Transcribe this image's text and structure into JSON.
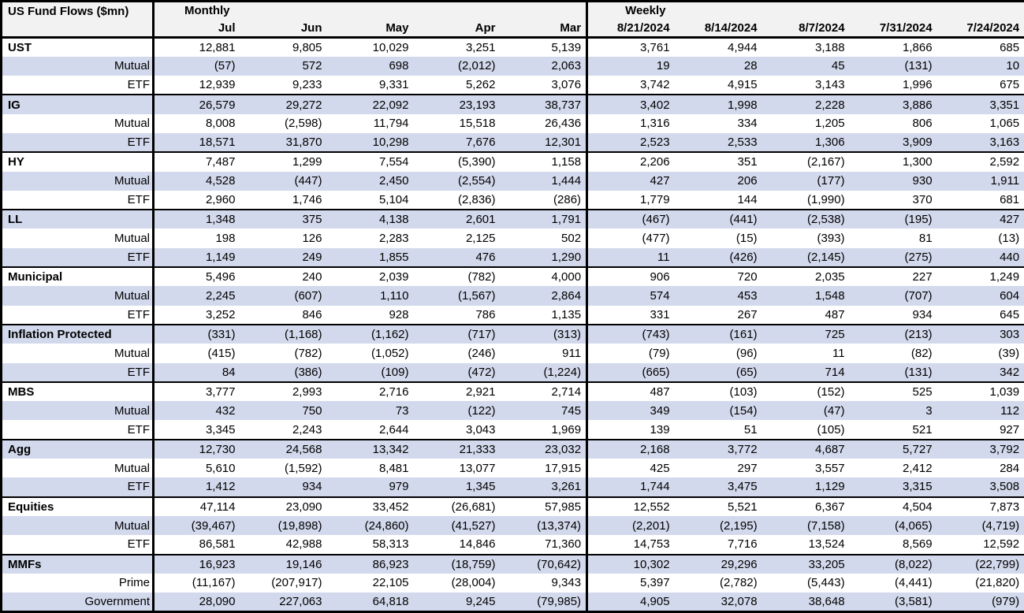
{
  "title": "US Fund Flows ($mn)",
  "colors": {
    "stripe_row": "#d2d9ec",
    "header_bg": "#f2f2f2",
    "border": "#000000",
    "text": "#000000",
    "row_bg": "#ffffff"
  },
  "chart_data": {
    "type": "table",
    "title": "US Fund Flows ($mn)",
    "negative_format": "parentheses",
    "column_groups": [
      {
        "label": "Monthly",
        "columns": [
          "Jul",
          "Jun",
          "May",
          "Apr",
          "Mar"
        ]
      },
      {
        "label": "Weekly",
        "columns": [
          "8/21/2024",
          "8/14/2024",
          "8/7/2024",
          "7/31/2024",
          "7/24/2024"
        ]
      }
    ],
    "rows": [
      {
        "label": "UST",
        "type": "section",
        "monthly": [
          12881,
          9805,
          10029,
          3251,
          5139
        ],
        "weekly": [
          3761,
          4944,
          3188,
          1866,
          685
        ]
      },
      {
        "label": "Mutual",
        "type": "sub",
        "monthly": [
          -57,
          572,
          698,
          -2012,
          2063
        ],
        "weekly": [
          19,
          28,
          45,
          -131,
          10
        ]
      },
      {
        "label": "ETF",
        "type": "sub",
        "monthly": [
          12939,
          9233,
          9331,
          5262,
          3076
        ],
        "weekly": [
          3742,
          4915,
          3143,
          1996,
          675
        ]
      },
      {
        "label": "IG",
        "type": "section",
        "monthly": [
          26579,
          29272,
          22092,
          23193,
          38737
        ],
        "weekly": [
          3402,
          1998,
          2228,
          3886,
          3351
        ]
      },
      {
        "label": "Mutual",
        "type": "sub",
        "monthly": [
          8008,
          -2598,
          11794,
          15518,
          26436
        ],
        "weekly": [
          1316,
          334,
          1205,
          806,
          1065
        ]
      },
      {
        "label": "ETF",
        "type": "sub",
        "monthly": [
          18571,
          31870,
          10298,
          7676,
          12301
        ],
        "weekly": [
          2523,
          2533,
          1306,
          3909,
          3163
        ]
      },
      {
        "label": "HY",
        "type": "section",
        "monthly": [
          7487,
          1299,
          7554,
          -5390,
          1158
        ],
        "weekly": [
          2206,
          351,
          -2167,
          1300,
          2592
        ]
      },
      {
        "label": "Mutual",
        "type": "sub",
        "monthly": [
          4528,
          -447,
          2450,
          -2554,
          1444
        ],
        "weekly": [
          427,
          206,
          -177,
          930,
          1911
        ]
      },
      {
        "label": "ETF",
        "type": "sub",
        "monthly": [
          2960,
          1746,
          5104,
          -2836,
          -286
        ],
        "weekly": [
          1779,
          144,
          -1990,
          370,
          681
        ]
      },
      {
        "label": "LL",
        "type": "section",
        "monthly": [
          1348,
          375,
          4138,
          2601,
          1791
        ],
        "weekly": [
          -467,
          -441,
          -2538,
          -195,
          427
        ]
      },
      {
        "label": "Mutual",
        "type": "sub",
        "monthly": [
          198,
          126,
          2283,
          2125,
          502
        ],
        "weekly": [
          -477,
          -15,
          -393,
          81,
          -13
        ]
      },
      {
        "label": "ETF",
        "type": "sub",
        "monthly": [
          1149,
          249,
          1855,
          476,
          1290
        ],
        "weekly": [
          11,
          -426,
          -2145,
          -275,
          440
        ]
      },
      {
        "label": "Municipal",
        "type": "section",
        "monthly": [
          5496,
          240,
          2039,
          -782,
          4000
        ],
        "weekly": [
          906,
          720,
          2035,
          227,
          1249
        ]
      },
      {
        "label": "Mutual",
        "type": "sub",
        "monthly": [
          2245,
          -607,
          1110,
          -1567,
          2864
        ],
        "weekly": [
          574,
          453,
          1548,
          -707,
          604
        ]
      },
      {
        "label": "ETF",
        "type": "sub",
        "monthly": [
          3252,
          846,
          928,
          786,
          1135
        ],
        "weekly": [
          331,
          267,
          487,
          934,
          645
        ]
      },
      {
        "label": "Inflation Protected",
        "type": "section",
        "monthly": [
          -331,
          -1168,
          -1162,
          -717,
          -313
        ],
        "weekly": [
          -743,
          -161,
          725,
          -213,
          303
        ]
      },
      {
        "label": "Mutual",
        "type": "sub",
        "monthly": [
          -415,
          -782,
          -1052,
          -246,
          911
        ],
        "weekly": [
          -79,
          -96,
          11,
          -82,
          -39
        ]
      },
      {
        "label": "ETF",
        "type": "sub",
        "monthly": [
          84,
          -386,
          -109,
          -472,
          -1224
        ],
        "weekly": [
          -665,
          -65,
          714,
          -131,
          342
        ]
      },
      {
        "label": "MBS",
        "type": "section",
        "monthly": [
          3777,
          2993,
          2716,
          2921,
          2714
        ],
        "weekly": [
          487,
          -103,
          -152,
          525,
          1039
        ]
      },
      {
        "label": "Mutual",
        "type": "sub",
        "monthly": [
          432,
          750,
          73,
          -122,
          745
        ],
        "weekly": [
          349,
          -154,
          -47,
          3,
          112
        ]
      },
      {
        "label": "ETF",
        "type": "sub",
        "monthly": [
          3345,
          2243,
          2644,
          3043,
          1969
        ],
        "weekly": [
          139,
          51,
          -105,
          521,
          927
        ]
      },
      {
        "label": "Agg",
        "type": "section",
        "monthly": [
          12730,
          24568,
          13342,
          21333,
          23032
        ],
        "weekly": [
          2168,
          3772,
          4687,
          5727,
          3792
        ]
      },
      {
        "label": "Mutual",
        "type": "sub",
        "monthly": [
          5610,
          -1592,
          8481,
          13077,
          17915
        ],
        "weekly": [
          425,
          297,
          3557,
          2412,
          284
        ]
      },
      {
        "label": "ETF",
        "type": "sub",
        "monthly": [
          1412,
          934,
          979,
          1345,
          3261
        ],
        "weekly": [
          1744,
          3475,
          1129,
          3315,
          3508
        ]
      },
      {
        "label": "Equities",
        "type": "section",
        "monthly": [
          47114,
          23090,
          33452,
          -26681,
          57985
        ],
        "weekly": [
          12552,
          5521,
          6367,
          4504,
          7873
        ]
      },
      {
        "label": "Mutual",
        "type": "sub",
        "monthly": [
          -39467,
          -19898,
          -24860,
          -41527,
          -13374
        ],
        "weekly": [
          -2201,
          -2195,
          -7158,
          -4065,
          -4719
        ]
      },
      {
        "label": "ETF",
        "type": "sub",
        "monthly": [
          86581,
          42988,
          58313,
          14846,
          71360
        ],
        "weekly": [
          14753,
          7716,
          13524,
          8569,
          12592
        ]
      },
      {
        "label": "MMFs",
        "type": "section",
        "monthly": [
          16923,
          19146,
          86923,
          -18759,
          -70642
        ],
        "weekly": [
          10302,
          29296,
          33205,
          -8022,
          -22799
        ]
      },
      {
        "label": "Prime",
        "type": "sub",
        "monthly": [
          -11167,
          -207917,
          22105,
          -28004,
          9343
        ],
        "weekly": [
          5397,
          -2782,
          -5443,
          -4441,
          -21820
        ]
      },
      {
        "label": "Government",
        "type": "sub",
        "monthly": [
          28090,
          227063,
          64818,
          9245,
          -79985
        ],
        "weekly": [
          4905,
          32078,
          38648,
          -3581,
          -979
        ]
      }
    ]
  }
}
